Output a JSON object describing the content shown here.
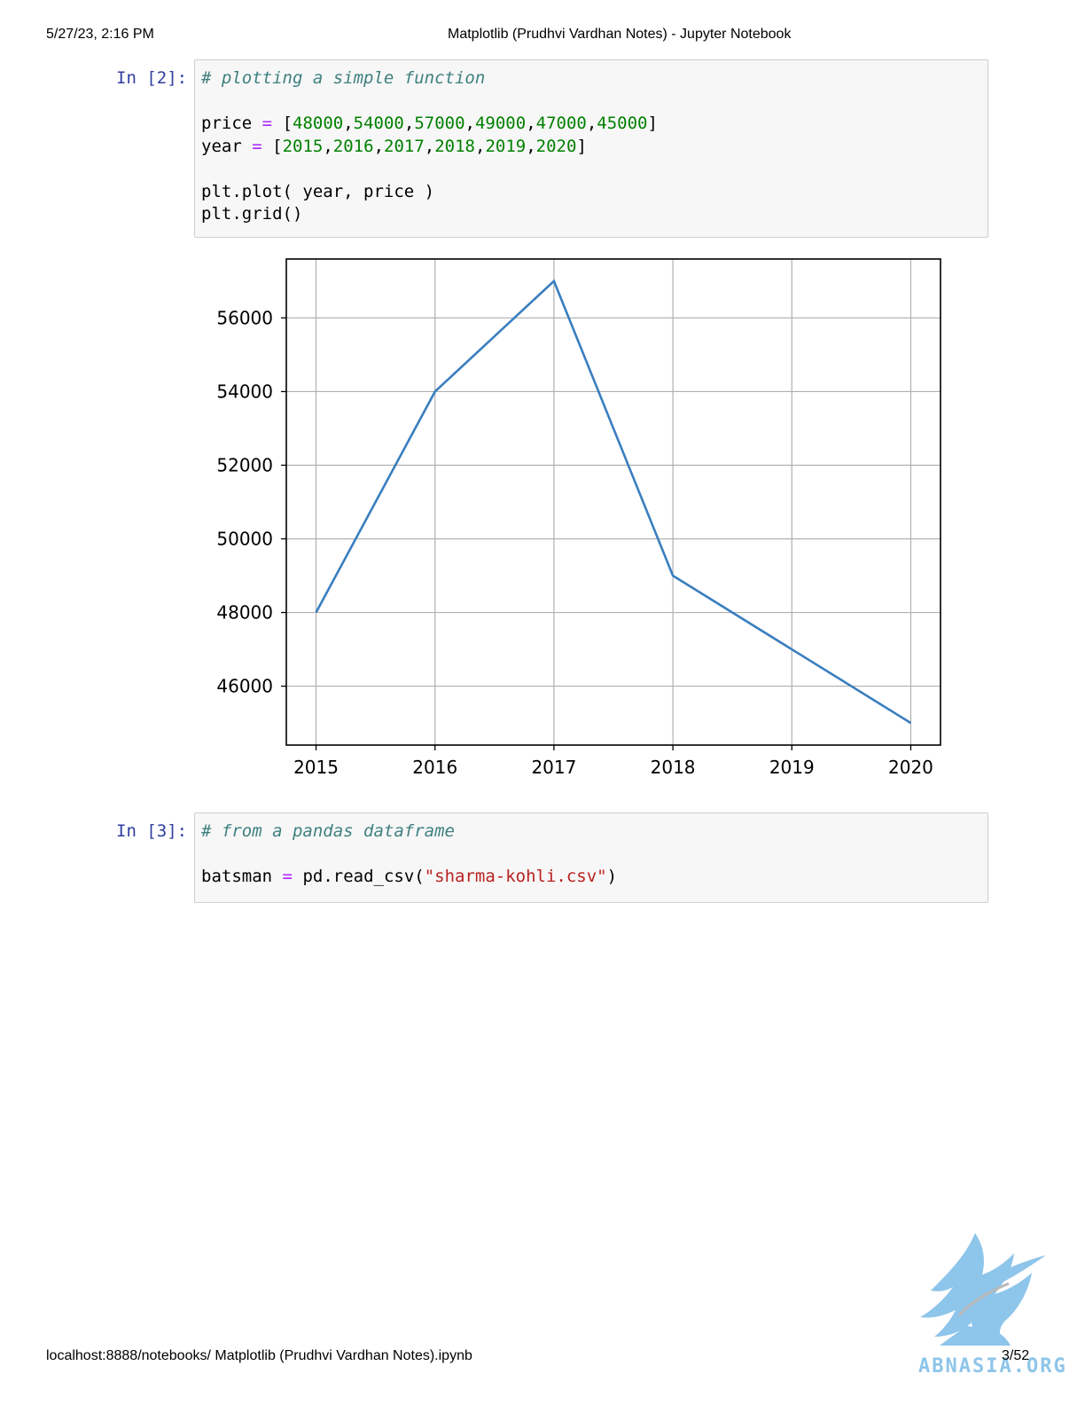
{
  "print_header": {
    "datetime": "5/27/23, 2:16 PM",
    "title": "Matplotlib (Prudhvi Vardhan Notes) - Jupyter Notebook"
  },
  "print_footer": {
    "url": "localhost:8888/notebooks/ Matplotlib (Prudhvi Vardhan Notes).ipynb",
    "page": "3/52"
  },
  "cells": [
    {
      "prompt": "In [2]:",
      "lines": [
        {
          "comment": "# plotting a simple function"
        },
        {
          "blank": ""
        },
        {
          "name": "price",
          "op": "=",
          "open": "[",
          "items": [
            "48000",
            "54000",
            "57000",
            "49000",
            "47000",
            "45000"
          ],
          "close": "]"
        },
        {
          "name": "year",
          "op": "=",
          "open": "[",
          "items": [
            "2015",
            "2016",
            "2017",
            "2018",
            "2019",
            "2020"
          ],
          "close": "]"
        },
        {
          "blank": ""
        },
        {
          "plain": "plt.plot( year, price )"
        },
        {
          "plain": "plt.grid()"
        }
      ]
    },
    {
      "prompt": "In [3]:",
      "comment": "# from a pandas dataframe",
      "var": "batsman",
      "op": "=",
      "call": "pd.read_csv(",
      "string": "\"sharma-kohli.csv\"",
      "close": ")"
    }
  ],
  "chart_data": {
    "type": "line",
    "x": [
      2015,
      2016,
      2017,
      2018,
      2019,
      2020
    ],
    "series": [
      {
        "values": [
          48000,
          54000,
          57000,
          49000,
          47000,
          45000
        ],
        "color": "#3a7ebf"
      }
    ],
    "xticks": [
      "2015",
      "2016",
      "2017",
      "2018",
      "2019",
      "2020"
    ],
    "yticks": [
      "46000",
      "48000",
      "50000",
      "52000",
      "54000",
      "56000"
    ],
    "ylim": [
      44400,
      57600
    ],
    "xlim": [
      2014.75,
      2020.25
    ],
    "grid": true,
    "title": "",
    "xlabel": "",
    "ylabel": ""
  },
  "watermark": {
    "text": "ABNASIA.ORG",
    "color": "#8ec5ea"
  }
}
